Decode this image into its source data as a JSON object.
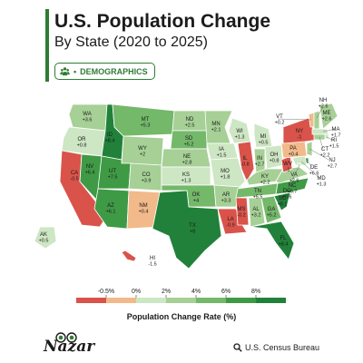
{
  "header": {
    "title": "U.S. Population Change",
    "subtitle": "By State (2020 to 2025)",
    "tag": "DEMOGRAPHICS"
  },
  "legend": {
    "title": "Population Change Rate (%)",
    "ticks": [
      "-0.5%",
      "0%",
      "2%",
      "4%",
      "6%",
      "8%"
    ],
    "colors": [
      "#d9534a",
      "#f2b98a",
      "#cde6c3",
      "#a6d096",
      "#74b86a",
      "#3f9a45",
      "#21813a"
    ]
  },
  "branding": {
    "logo": "Nazar",
    "source": "U.S. Census Bureau"
  },
  "colors": {
    "accent": "#2e7d32",
    "sea": "#ffffff"
  },
  "states": [
    {
      "abbr": "WA",
      "value": "+3.6"
    },
    {
      "abbr": "OR",
      "value": "+0.8"
    },
    {
      "abbr": "CA",
      "value": "-0.5"
    },
    {
      "abbr": "NV",
      "value": "+6.4"
    },
    {
      "abbr": "ID",
      "value": "+8.4"
    },
    {
      "abbr": "MT",
      "value": "+5.3"
    },
    {
      "abbr": "WY",
      "value": "+2"
    },
    {
      "abbr": "UT",
      "value": "+7.5"
    },
    {
      "abbr": "AZ",
      "value": "+6.1"
    },
    {
      "abbr": "CO",
      "value": "+3.9"
    },
    {
      "abbr": "NM",
      "value": "+0.4"
    },
    {
      "abbr": "ND",
      "value": "+2.5"
    },
    {
      "abbr": "SD",
      "value": "+5.2"
    },
    {
      "abbr": "NE",
      "value": "+2.8"
    },
    {
      "abbr": "KS",
      "value": "+1.3"
    },
    {
      "abbr": "OK",
      "value": "+4"
    },
    {
      "abbr": "TX",
      "value": "+8"
    },
    {
      "abbr": "MN",
      "value": "+2.1"
    },
    {
      "abbr": "IA",
      "value": "+1.5"
    },
    {
      "abbr": "MO",
      "value": "+1.8"
    },
    {
      "abbr": "AR",
      "value": "+3.3"
    },
    {
      "abbr": "LA",
      "value": "-0.9"
    },
    {
      "abbr": "WI",
      "value": "+1.3"
    },
    {
      "abbr": "IL",
      "value": "-0.8"
    },
    {
      "abbr": "MI",
      "value": "+0.5"
    },
    {
      "abbr": "IN",
      "value": "+2.7"
    },
    {
      "abbr": "OH",
      "value": "+0.8"
    },
    {
      "abbr": "KY",
      "value": "+2.2"
    },
    {
      "abbr": "TN",
      "value": "+5.5"
    },
    {
      "abbr": "MS",
      "value": "-0.2"
    },
    {
      "abbr": "AL",
      "value": "+3.2"
    },
    {
      "abbr": "GA",
      "value": "+5.2"
    },
    {
      "abbr": "FL",
      "value": "+8.4"
    },
    {
      "abbr": "SC",
      "value": "+8.1"
    },
    {
      "abbr": "NC",
      "value": "+6.7"
    },
    {
      "abbr": "VA",
      "value": "+2.6"
    },
    {
      "abbr": "WV",
      "value": "-1"
    },
    {
      "abbr": "PA",
      "value": "+0.4"
    },
    {
      "abbr": "NY",
      "value": "-1"
    },
    {
      "abbr": "VT",
      "value": "+0.2"
    },
    {
      "abbr": "NH",
      "value": "+2.6"
    },
    {
      "abbr": "ME",
      "value": "+2.6"
    },
    {
      "abbr": "MA",
      "value": "+1.7"
    },
    {
      "abbr": "RI",
      "value": "+1.5"
    },
    {
      "abbr": "CT",
      "value": "+2.2"
    },
    {
      "abbr": "NJ",
      "value": "+2.7"
    },
    {
      "abbr": "DE",
      "value": "+6.6"
    },
    {
      "abbr": "MD",
      "value": "+1.3"
    },
    {
      "abbr": "DC",
      "value": "+0.6"
    },
    {
      "abbr": "AK",
      "value": "+0.5"
    },
    {
      "abbr": "HI",
      "value": "-1.5"
    }
  ]
}
